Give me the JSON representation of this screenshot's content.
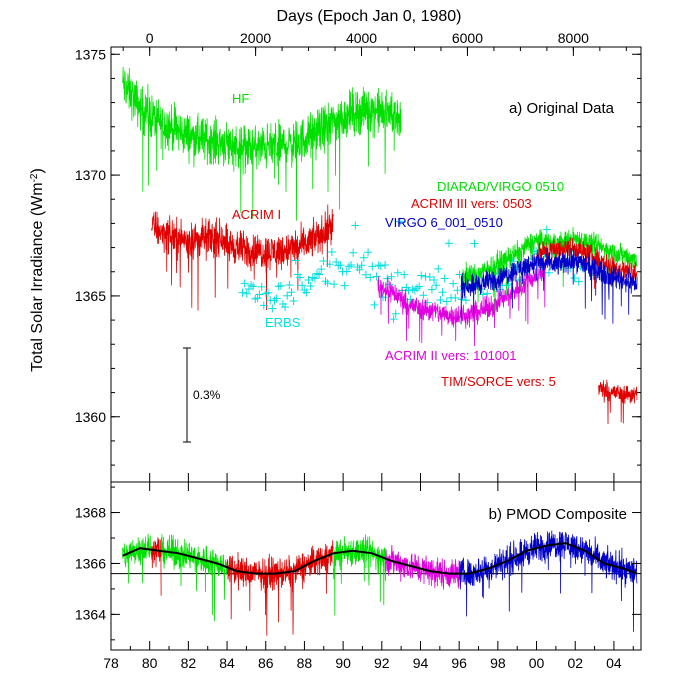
{
  "chart_data": [
    {
      "type": "line",
      "panel": "a",
      "title": "a) Original Data",
      "top_axis_label": "Days (Epoch Jan 0, 1980)",
      "top_ticks": [
        "0",
        "2000",
        "4000",
        "6000",
        "8000"
      ],
      "top_tick_values": [
        0,
        2000,
        4000,
        6000,
        8000
      ],
      "ylabel": "Total Solar Irradiance (Wm",
      "ylabel_sup": "-2",
      "ylabel_close": ")",
      "ylim": [
        1357.3,
        1375.3
      ],
      "yticks": [
        "1360",
        "1365",
        "1370",
        "1375"
      ],
      "ytick_values": [
        1360,
        1365,
        1370,
        1375
      ],
      "xlim": [
        1978,
        2005.4
      ],
      "series": [
        {
          "name": "HF",
          "color": "#00e000",
          "noise": 0.7,
          "points": [
            [
              1978.6,
              1373.8
            ],
            [
              1979.5,
              1372.8
            ],
            [
              1980.5,
              1372.2
            ],
            [
              1981.5,
              1371.8
            ],
            [
              1982.5,
              1371.5
            ],
            [
              1983.5,
              1371.4
            ],
            [
              1984.5,
              1371.2
            ],
            [
              1985.5,
              1371.1
            ],
            [
              1986.5,
              1371.2
            ],
            [
              1987.5,
              1371.3
            ],
            [
              1988.5,
              1371.7
            ],
            [
              1989.5,
              1372.2
            ],
            [
              1990.5,
              1372.6
            ],
            [
              1991.5,
              1372.7
            ],
            [
              1992.5,
              1372.5
            ],
            [
              1993.0,
              1372.4
            ]
          ]
        },
        {
          "name": "ACRIM I",
          "color": "#e00000",
          "noise": 0.55,
          "points": [
            [
              1980.1,
              1367.9
            ],
            [
              1981.0,
              1367.5
            ],
            [
              1982.0,
              1367.3
            ],
            [
              1983.0,
              1367.4
            ],
            [
              1983.9,
              1367.4
            ],
            [
              1984.1,
              1367.1
            ],
            [
              1985.0,
              1366.9
            ],
            [
              1986.0,
              1366.8
            ],
            [
              1987.0,
              1366.9
            ],
            [
              1988.0,
              1367.1
            ],
            [
              1989.0,
              1367.6
            ],
            [
              1989.5,
              1368.1
            ]
          ]
        },
        {
          "name": "ERBS",
          "color": "#00e0e0",
          "noise": 0.5,
          "marker": "plus",
          "points": [
            [
              1984.8,
              1365.2
            ],
            [
              1986.0,
              1364.9
            ],
            [
              1987.0,
              1365.0
            ],
            [
              1988.0,
              1365.4
            ],
            [
              1989.0,
              1365.9
            ],
            [
              1990.0,
              1366.2
            ],
            [
              1991.0,
              1366.1
            ],
            [
              1992.0,
              1365.9
            ],
            [
              1993.0,
              1365.7
            ],
            [
              1994.0,
              1365.5
            ],
            [
              1995.0,
              1365.3
            ],
            [
              1996.0,
              1365.4
            ],
            [
              1997.0,
              1365.6
            ],
            [
              1998.0,
              1365.8
            ],
            [
              1999.0,
              1366.1
            ],
            [
              2000.0,
              1366.4
            ],
            [
              2001.0,
              1366.5
            ],
            [
              2002.0,
              1366.3
            ],
            [
              2003.0,
              1366.0
            ]
          ]
        },
        {
          "name": "ACRIM II vers: 101001",
          "color": "#e000e0",
          "noise": 0.35,
          "points": [
            [
              1991.8,
              1365.4
            ],
            [
              1992.5,
              1365.2
            ],
            [
              1993.5,
              1364.6
            ],
            [
              1994.5,
              1364.4
            ],
            [
              1995.5,
              1364.2
            ],
            [
              1996.5,
              1364.2
            ],
            [
              1997.5,
              1364.5
            ],
            [
              1998.5,
              1365.0
            ],
            [
              1999.5,
              1365.6
            ],
            [
              2000.5,
              1366.1
            ]
          ]
        },
        {
          "name": "DIARAD/VIRGO 0510",
          "color": "#00e000",
          "noise": 0.35,
          "points": [
            [
              1996.1,
              1365.8
            ],
            [
              1997.0,
              1365.9
            ],
            [
              1998.0,
              1366.3
            ],
            [
              1999.0,
              1366.8
            ],
            [
              2000.0,
              1367.3
            ],
            [
              2001.0,
              1367.2
            ],
            [
              2002.0,
              1367.4
            ],
            [
              2003.0,
              1367.1
            ],
            [
              2004.0,
              1366.8
            ],
            [
              2005.2,
              1366.5
            ]
          ]
        },
        {
          "name": "ACRIM III vers: 0503",
          "color": "#e00000",
          "noise": 0.35,
          "points": [
            [
              2000.0,
              1366.8
            ],
            [
              2001.0,
              1366.9
            ],
            [
              2002.0,
              1367.0
            ],
            [
              2003.0,
              1366.6
            ],
            [
              2004.0,
              1366.2
            ],
            [
              2005.2,
              1365.9
            ]
          ]
        },
        {
          "name": "VIRGO 6_001_0510",
          "color": "#0000c8",
          "noise": 0.35,
          "points": [
            [
              1996.1,
              1365.4
            ],
            [
              1997.0,
              1365.5
            ],
            [
              1998.0,
              1365.7
            ],
            [
              1999.0,
              1366.1
            ],
            [
              2000.0,
              1366.4
            ],
            [
              2001.0,
              1366.3
            ],
            [
              2002.0,
              1366.5
            ],
            [
              2003.0,
              1366.1
            ],
            [
              2004.0,
              1365.8
            ],
            [
              2005.2,
              1365.5
            ]
          ]
        },
        {
          "name": "TIM/SORCE vers: 5",
          "color": "#e00000",
          "noise": 0.3,
          "points": [
            [
              2003.2,
              1361.2
            ],
            [
              2004.0,
              1361.0
            ],
            [
              2005.2,
              1360.9
            ]
          ]
        }
      ],
      "scale_bar_label": "0.3%"
    },
    {
      "type": "line",
      "panel": "b",
      "title": "b) PMOD Composite",
      "ylim": [
        1362.6,
        1369.2
      ],
      "yticks": [
        "1364",
        "1366",
        "1368"
      ],
      "ytick_values": [
        1364,
        1366,
        1368
      ],
      "xlim": [
        1978,
        2005.4
      ],
      "xticks": [
        "78",
        "80",
        "82",
        "84",
        "86",
        "88",
        "90",
        "92",
        "94",
        "96",
        "98",
        "00",
        "02",
        "04"
      ],
      "xtick_values": [
        1978,
        1980,
        1982,
        1984,
        1986,
        1988,
        1990,
        1992,
        1994,
        1996,
        1998,
        2000,
        2002,
        2004
      ],
      "reference_line": 1365.6,
      "segments": [
        {
          "color": "#00e000",
          "x0": 1978.6,
          "x1": 1980.1
        },
        {
          "color": "#e00000",
          "x0": 1980.1,
          "x1": 1980.6
        },
        {
          "color": "#00e000",
          "x0": 1980.6,
          "x1": 1984.0
        },
        {
          "color": "#e00000",
          "x0": 1984.0,
          "x1": 1989.5
        },
        {
          "color": "#00e000",
          "x0": 1989.5,
          "x1": 1992.2
        },
        {
          "color": "#e000e0",
          "x0": 1992.2,
          "x1": 1996.0
        },
        {
          "color": "#0000c8",
          "x0": 1996.0,
          "x1": 2005.2
        }
      ],
      "smooth": [
        [
          1978.6,
          1366.3
        ],
        [
          1979.5,
          1366.6
        ],
        [
          1980.5,
          1366.5
        ],
        [
          1981.5,
          1366.4
        ],
        [
          1982.5,
          1366.2
        ],
        [
          1983.5,
          1366.0
        ],
        [
          1984.5,
          1365.7
        ],
        [
          1985.5,
          1365.6
        ],
        [
          1986.5,
          1365.6
        ],
        [
          1987.5,
          1365.7
        ],
        [
          1988.5,
          1366.1
        ],
        [
          1989.5,
          1366.4
        ],
        [
          1990.5,
          1366.5
        ],
        [
          1991.5,
          1366.4
        ],
        [
          1992.5,
          1366.1
        ],
        [
          1993.5,
          1365.9
        ],
        [
          1994.5,
          1365.7
        ],
        [
          1995.5,
          1365.6
        ],
        [
          1996.5,
          1365.6
        ],
        [
          1997.5,
          1365.8
        ],
        [
          1998.5,
          1366.1
        ],
        [
          1999.5,
          1366.5
        ],
        [
          2000.5,
          1366.7
        ],
        [
          2001.5,
          1366.8
        ],
        [
          2002.5,
          1366.5
        ],
        [
          2003.5,
          1366.0
        ],
        [
          2004.5,
          1365.8
        ],
        [
          2005.2,
          1365.6
        ]
      ],
      "smooth_color": "#000000",
      "noise": 0.45
    }
  ]
}
